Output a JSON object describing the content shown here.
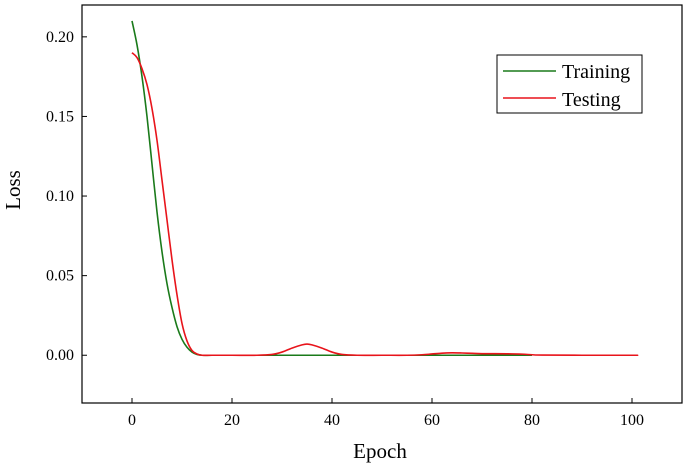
{
  "chart_data": {
    "type": "line",
    "title": "",
    "xlabel": "Epoch",
    "ylabel": "Loss",
    "xlim": [
      -10,
      110
    ],
    "ylim": [
      -0.03,
      0.22
    ],
    "xticks": [
      0,
      20,
      40,
      60,
      80,
      100
    ],
    "xtick_labels": [
      "0",
      "20",
      "40",
      "60",
      "80",
      "100"
    ],
    "yticks": [
      0.0,
      0.05,
      0.1,
      0.15,
      0.2
    ],
    "ytick_labels": [
      "0.00",
      "0.05",
      "0.10",
      "0.15",
      "0.20"
    ],
    "grid": false,
    "legend_position": "top-right",
    "series": [
      {
        "name": "Training",
        "color": "#1a7a1a",
        "x": [
          0,
          1,
          2,
          3,
          4,
          5,
          6,
          7,
          8,
          9,
          10,
          11,
          12,
          13,
          14,
          16,
          20,
          30,
          40,
          50,
          60,
          70,
          80
        ],
        "y": [
          0.21,
          0.195,
          0.175,
          0.15,
          0.12,
          0.09,
          0.065,
          0.045,
          0.03,
          0.018,
          0.01,
          0.005,
          0.002,
          0.0005,
          0.0,
          0.0,
          0.0,
          0.0,
          0.0,
          0.0,
          0.0,
          0.0,
          0.0
        ]
      },
      {
        "name": "Testing",
        "color": "#e8141b",
        "x": [
          0,
          1,
          2,
          3,
          4,
          5,
          6,
          7,
          8,
          9,
          10,
          11,
          12,
          13,
          14,
          16,
          20,
          25,
          28,
          30,
          32,
          34,
          35,
          36,
          38,
          40,
          42,
          45,
          50,
          55,
          58,
          60,
          62,
          64,
          66,
          68,
          70,
          75,
          78,
          80,
          82,
          90,
          100,
          101
        ],
        "y": [
          0.19,
          0.187,
          0.18,
          0.17,
          0.155,
          0.135,
          0.11,
          0.085,
          0.06,
          0.038,
          0.02,
          0.009,
          0.003,
          0.0008,
          0.0,
          0.0,
          0.0,
          0.0,
          0.0005,
          0.002,
          0.0045,
          0.0065,
          0.007,
          0.0065,
          0.0045,
          0.002,
          0.0005,
          0.0,
          0.0,
          0.0,
          0.0003,
          0.0008,
          0.0013,
          0.0015,
          0.0014,
          0.0012,
          0.001,
          0.0009,
          0.0007,
          0.0003,
          0.0001,
          0.0,
          0.0,
          0.0
        ]
      }
    ]
  }
}
